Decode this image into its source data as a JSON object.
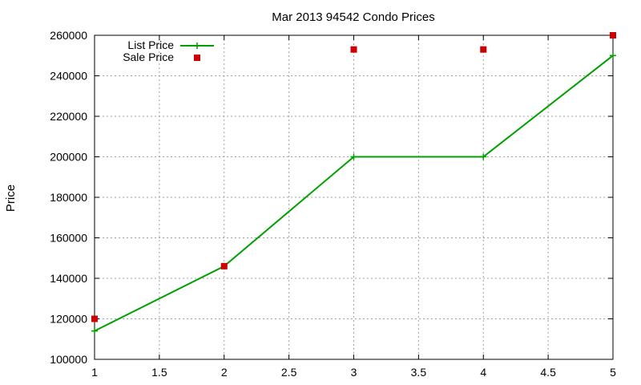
{
  "chart_data": {
    "type": "line",
    "title": "Mar 2013 94542 Condo Prices",
    "xlabel": "",
    "ylabel": "Price",
    "xlim": [
      1,
      5
    ],
    "ylim": [
      100000,
      260000
    ],
    "x_ticks": [
      "1",
      "1.5",
      "2",
      "2.5",
      "3",
      "3.5",
      "4",
      "4.5",
      "5"
    ],
    "y_ticks": [
      "100000",
      "120000",
      "140000",
      "160000",
      "180000",
      "200000",
      "220000",
      "240000",
      "260000"
    ],
    "grid": true,
    "legend_position": "top-left",
    "series": [
      {
        "name": "List Price",
        "style": "line-with-plus-markers",
        "color": "#00a000",
        "x": [
          1,
          2,
          3,
          4,
          5
        ],
        "values": [
          114000,
          146000,
          200000,
          200000,
          250000
        ]
      },
      {
        "name": "Sale Price",
        "style": "square-markers",
        "color": "#cc0000",
        "x": [
          1,
          2,
          3,
          4,
          5
        ],
        "values": [
          120000,
          146000,
          253000,
          253000,
          260000
        ]
      }
    ]
  }
}
